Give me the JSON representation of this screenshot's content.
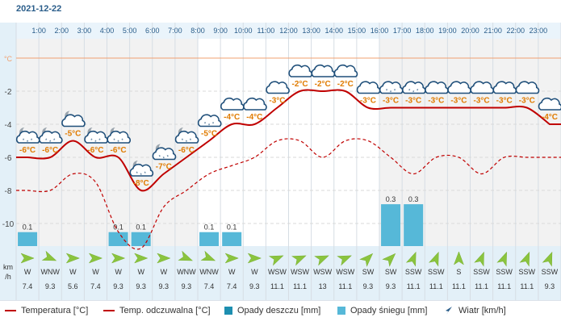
{
  "date": "2021-12-22",
  "units": {
    "celsius": "°C",
    "wind_km": "km",
    "wind_h": "/h"
  },
  "legend": {
    "temp": "Temperatura [°C]",
    "feels": "Temp. odczuwalna [°C]",
    "rain": "Opady deszczu [mm]",
    "snow": "Opady śniegu [mm]",
    "wind": "Wiatr [km/h]"
  },
  "colors": {
    "temp": "#c00000",
    "rain": "#1d8fb0",
    "snow": "#56b8d8",
    "label": "#e07b00",
    "axis": "#2a5d8a"
  },
  "chart_data": {
    "type": "line",
    "hours": [
      "1:00",
      "2:00",
      "3:00",
      "4:00",
      "5:00",
      "6:00",
      "7:00",
      "8:00",
      "9:00",
      "10:00",
      "11:00",
      "12:00",
      "13:00",
      "14:00",
      "15:00",
      "16:00",
      "17:00",
      "18:00",
      "19:00",
      "20:00",
      "21:00",
      "22:00",
      "23:00"
    ],
    "x_hours": [
      0.5,
      1.5,
      2.5,
      3.5,
      4.5,
      5.5,
      6.5,
      7.5,
      8.5,
      9.5,
      10.5,
      11.5,
      12.5,
      13.5,
      14.5,
      15.5,
      16.5,
      17.5,
      18.5,
      19.5,
      20.5,
      21.5,
      22.5,
      23.5
    ],
    "yticks": [
      -2,
      -4,
      -6,
      -8,
      -10
    ],
    "ylim": [
      -12.5,
      0.5
    ],
    "series": [
      {
        "name": "Temperatura [°C]",
        "values": [
          -6,
          -6,
          -5,
          -6,
          -6,
          -8,
          -7,
          -6,
          -5,
          -4,
          -4,
          -3,
          -2,
          -2,
          -2,
          -3,
          -3,
          -3,
          -3,
          -3,
          -3,
          -3,
          -3,
          -4
        ]
      },
      {
        "name": "Temp. odczuwalna [°C]",
        "values": [
          -8,
          -8,
          -7,
          -7.5,
          -10.5,
          -11.5,
          -9,
          -8,
          -7,
          -6.5,
          -6,
          -5,
          -5,
          -6,
          -5,
          -5,
          -6,
          -7,
          -6,
          -6,
          -7,
          -6,
          -6,
          -6
        ]
      }
    ],
    "temp_labels": [
      "-6°C",
      "-6°C",
      "-5°C",
      "-6°C",
      "-6°C",
      "-8°C",
      "-7°C",
      "-6°C",
      "-5°C",
      "-4°C",
      "-4°C",
      "-3°C",
      "-2°C",
      "-2°C",
      "-2°C",
      "-3°C",
      "-3°C",
      "-3°C",
      "-3°C",
      "-3°C",
      "-3°C",
      "-3°C",
      "-3°C",
      "-4°C"
    ],
    "icons": [
      "snow-moon-cloud",
      "snow-moon-cloud",
      "moon-cloud",
      "snow-moon-cloud",
      "snow-moon-cloud",
      "snow-moon-cloud",
      "snow-moon-cloud",
      "snow-moon-cloud",
      "snow-cloud",
      "cloud",
      "cloud",
      "cloud",
      "cloud",
      "cloud",
      "cloud",
      "cloud",
      "snow-cloud",
      "snow-cloud",
      "cloud",
      "cloud",
      "cloud",
      "cloud",
      "cloud",
      "cloud"
    ],
    "precip": [
      {
        "hour": 0.5,
        "value": 0.1,
        "label": "0.1",
        "kind": "snow"
      },
      {
        "hour": 4.5,
        "value": 0.1,
        "label": "0.1",
        "kind": "snow"
      },
      {
        "hour": 5.5,
        "value": 0.1,
        "label": "0.1",
        "kind": "snow"
      },
      {
        "hour": 8.5,
        "value": 0.1,
        "label": "0.1",
        "kind": "snow"
      },
      {
        "hour": 9.5,
        "value": 0.1,
        "label": "0.1",
        "kind": "snow"
      },
      {
        "hour": 16.5,
        "value": 0.3,
        "label": "0.3",
        "kind": "snow"
      },
      {
        "hour": 17.5,
        "value": 0.3,
        "label": "0.3",
        "kind": "snow"
      }
    ],
    "wind_dir": [
      "W",
      "WNW",
      "W",
      "W",
      "W",
      "W",
      "W",
      "WNW",
      "WNW",
      "W",
      "W",
      "WSW",
      "WSW",
      "WSW",
      "WSW",
      "SW",
      "SW",
      "SSW",
      "SSW",
      "S",
      "SSW",
      "SSW",
      "SSW",
      "SSW"
    ],
    "wind_deg": [
      270,
      292,
      270,
      270,
      270,
      270,
      270,
      292,
      292,
      270,
      270,
      247,
      247,
      247,
      247,
      225,
      225,
      202,
      202,
      180,
      202,
      202,
      202,
      202
    ],
    "wind_speed": [
      "7.4",
      "9.3",
      "5.6",
      "7.4",
      "9.3",
      "9.3",
      "9.3",
      "9.3",
      "7.4",
      "7.4",
      "9.3",
      "11.1",
      "11.1",
      "13",
      "11.1",
      "9.3",
      "9.3",
      "11.1",
      "11.1",
      "11.1",
      "11.1",
      "11.1",
      "11.1",
      "9.3"
    ]
  }
}
